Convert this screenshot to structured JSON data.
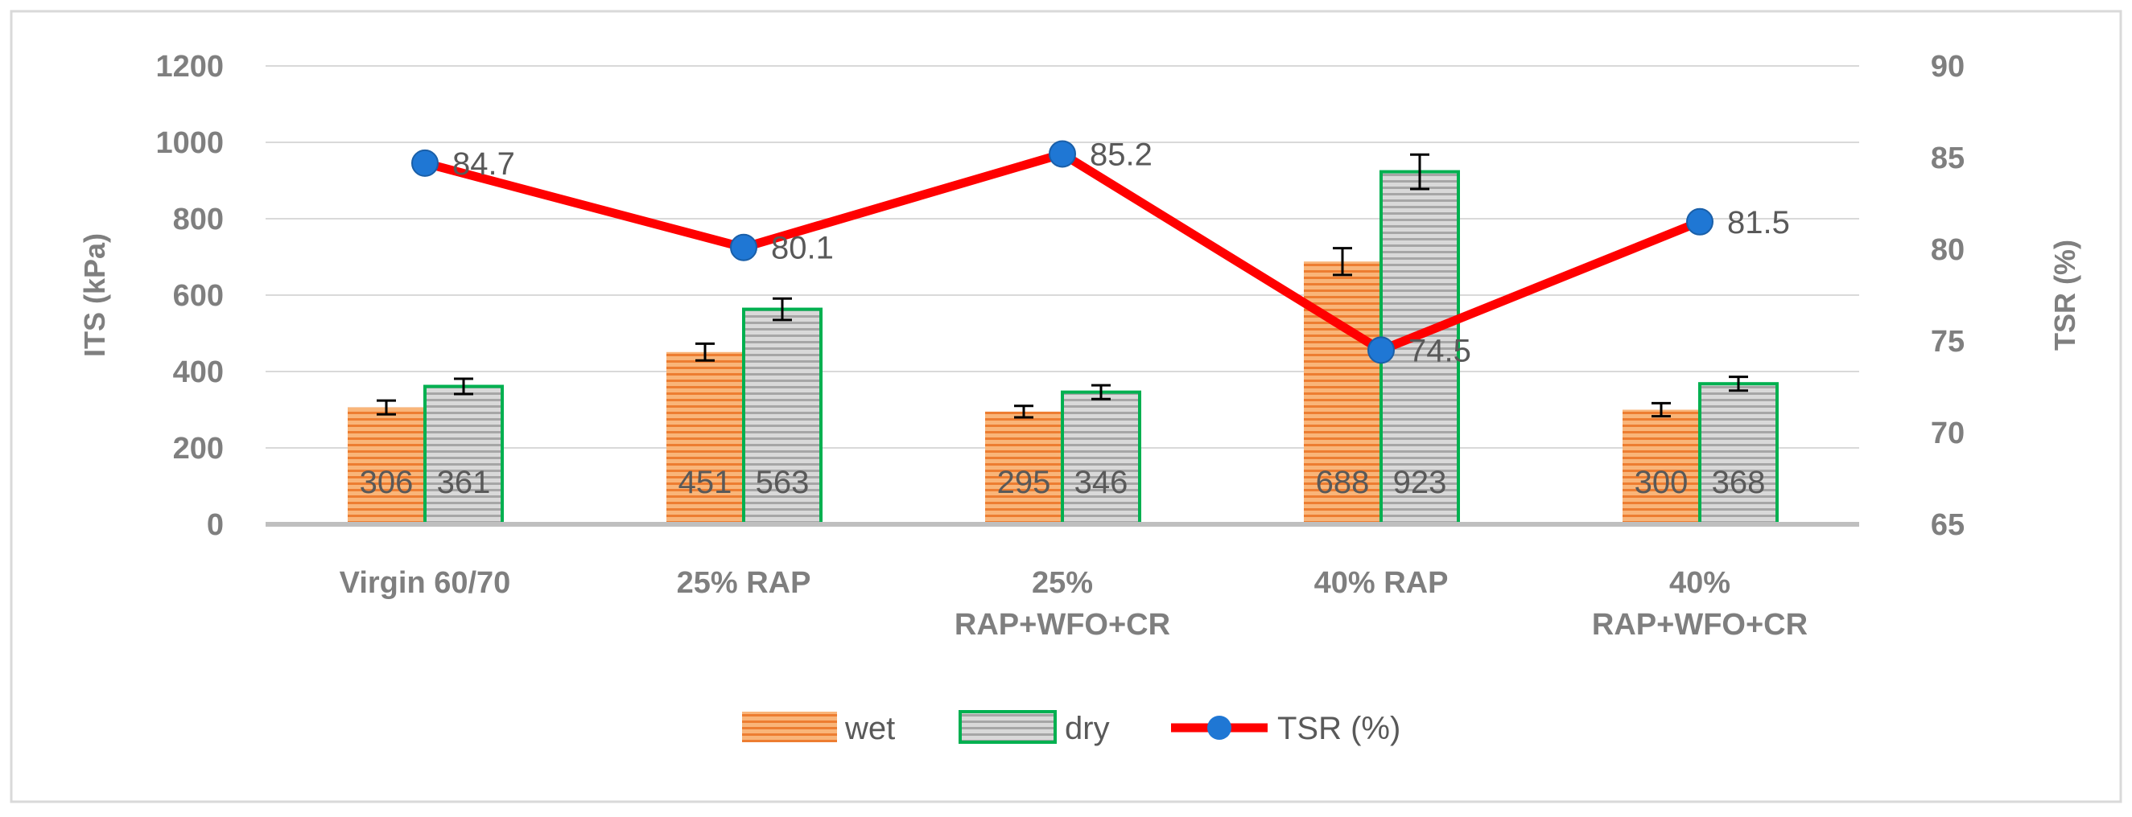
{
  "chart_data": {
    "type": "bar+line",
    "categories": [
      [
        "Virgin 60/70"
      ],
      [
        "25% RAP"
      ],
      [
        "25%",
        "RAP+WFO+CR"
      ],
      [
        "40% RAP"
      ],
      [
        "40%",
        "RAP+WFO+CR"
      ]
    ],
    "series": [
      {
        "name": "wet",
        "kind": "bar",
        "axis": "left",
        "values": [
          306,
          451,
          295,
          688,
          300
        ],
        "errors": [
          18,
          22,
          15,
          35,
          17
        ],
        "color": "#f4a259",
        "border": "#ed7d31"
      },
      {
        "name": "dry",
        "kind": "bar",
        "axis": "left",
        "values": [
          361,
          563,
          346,
          923,
          368
        ],
        "errors": [
          20,
          28,
          18,
          45,
          18
        ],
        "color": "#bfbfbf",
        "border": "#00b050"
      },
      {
        "name": "TSR (%)",
        "kind": "line",
        "axis": "right",
        "values": [
          84.7,
          80.1,
          85.2,
          74.5,
          81.5
        ],
        "color": "#ff0000",
        "marker_color": "#1f77d4"
      }
    ],
    "left_axis": {
      "label": "ITS (kPa)",
      "min": 0,
      "max": 1200,
      "step": 200,
      "ticks": [
        "0",
        "200",
        "400",
        "600",
        "800",
        "1000",
        "1200"
      ]
    },
    "right_axis": {
      "label": "TSR (%)",
      "min": 65,
      "max": 90,
      "step": 5,
      "ticks": [
        "65",
        "70",
        "75",
        "80",
        "85",
        "90"
      ]
    },
    "gridlines": true,
    "legend_position": "bottom",
    "legend": [
      "wet",
      "dry",
      "TSR (%)"
    ]
  }
}
